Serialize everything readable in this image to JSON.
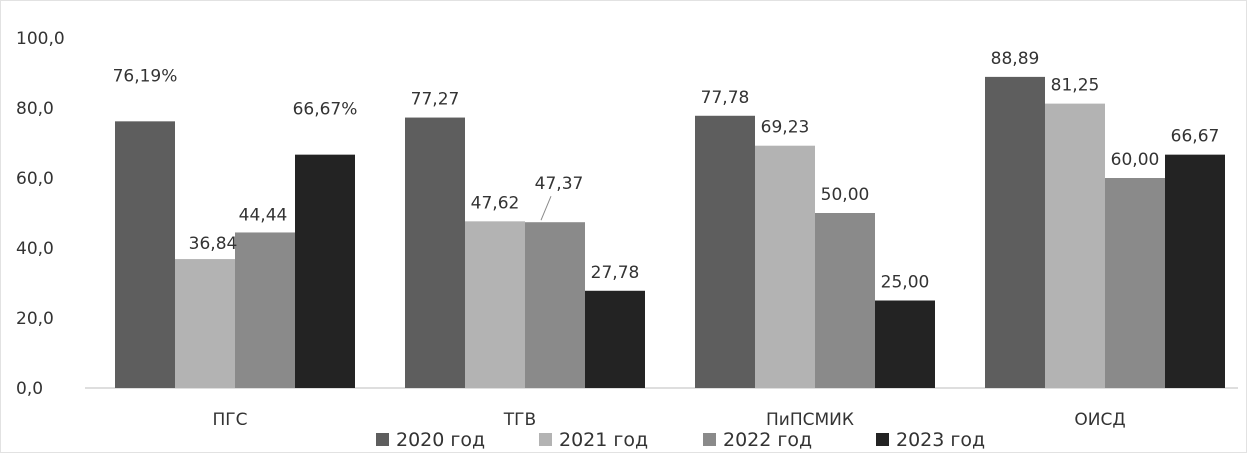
{
  "chart_data": {
    "type": "bar",
    "categories": [
      "ПГС",
      "ТГВ",
      "ПиПСМИК",
      "ОИСД"
    ],
    "series": [
      {
        "name": "2020 год",
        "color": "#5e5e5e",
        "values": [
          76.19,
          77.27,
          77.78,
          88.89
        ],
        "labels": [
          "76,19%",
          "77,27",
          "77,78",
          "88,89"
        ]
      },
      {
        "name": "2021 год",
        "color": "#b3b3b3",
        "values": [
          36.84,
          47.62,
          69.23,
          81.25
        ],
        "labels": [
          "36,84",
          "47,62",
          "69,23",
          "81,25"
        ]
      },
      {
        "name": "2022 год",
        "color": "#8a8a8a",
        "values": [
          44.44,
          47.37,
          50.0,
          60.0
        ],
        "labels": [
          "44,44",
          "47,37",
          "50,00",
          "60,00"
        ]
      },
      {
        "name": "2023 год",
        "color": "#232323",
        "values": [
          66.67,
          27.78,
          25.0,
          66.67
        ],
        "labels": [
          "66,67%",
          "27,78",
          "25,00",
          "66,67"
        ]
      }
    ],
    "yticks": [
      "0,0",
      "20,0",
      "40,0",
      "60,0",
      "80,0",
      "100,0"
    ],
    "ylim": [
      0,
      100
    ],
    "grid": false,
    "legend_position": "bottom"
  }
}
